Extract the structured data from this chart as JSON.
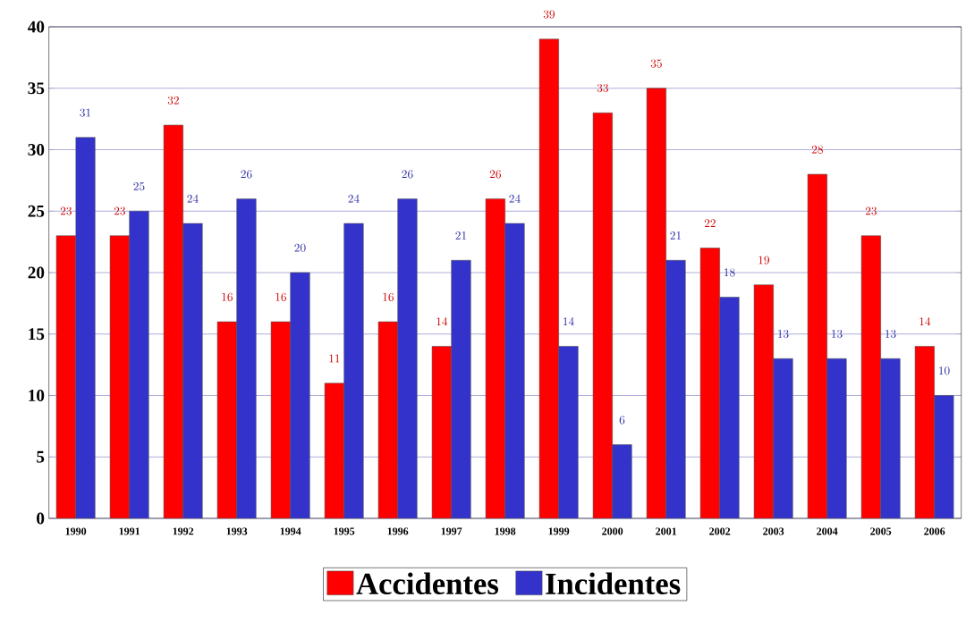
{
  "chart_data": {
    "type": "bar",
    "categories": [
      "1990",
      "1991",
      "1992",
      "1993",
      "1994",
      "1995",
      "1996",
      "1997",
      "1998",
      "1999",
      "2000",
      "2001",
      "2002",
      "2003",
      "2004",
      "2005",
      "2006"
    ],
    "series": [
      {
        "name": "Accidentes",
        "color": "#ff0000",
        "values": [
          23,
          23,
          32,
          16,
          16,
          11,
          16,
          14,
          26,
          39,
          33,
          35,
          22,
          19,
          28,
          23,
          14
        ]
      },
      {
        "name": "Incidentes",
        "color": "#3333cc",
        "values": [
          31,
          25,
          24,
          26,
          20,
          24,
          26,
          21,
          24,
          14,
          6,
          21,
          18,
          13,
          13,
          13,
          10
        ]
      }
    ],
    "ylim": [
      0,
      40
    ],
    "yticks": [
      0,
      5,
      10,
      15,
      20,
      25,
      30,
      35,
      40
    ],
    "grid": "y",
    "legend": "bottom",
    "data_labels": true
  }
}
